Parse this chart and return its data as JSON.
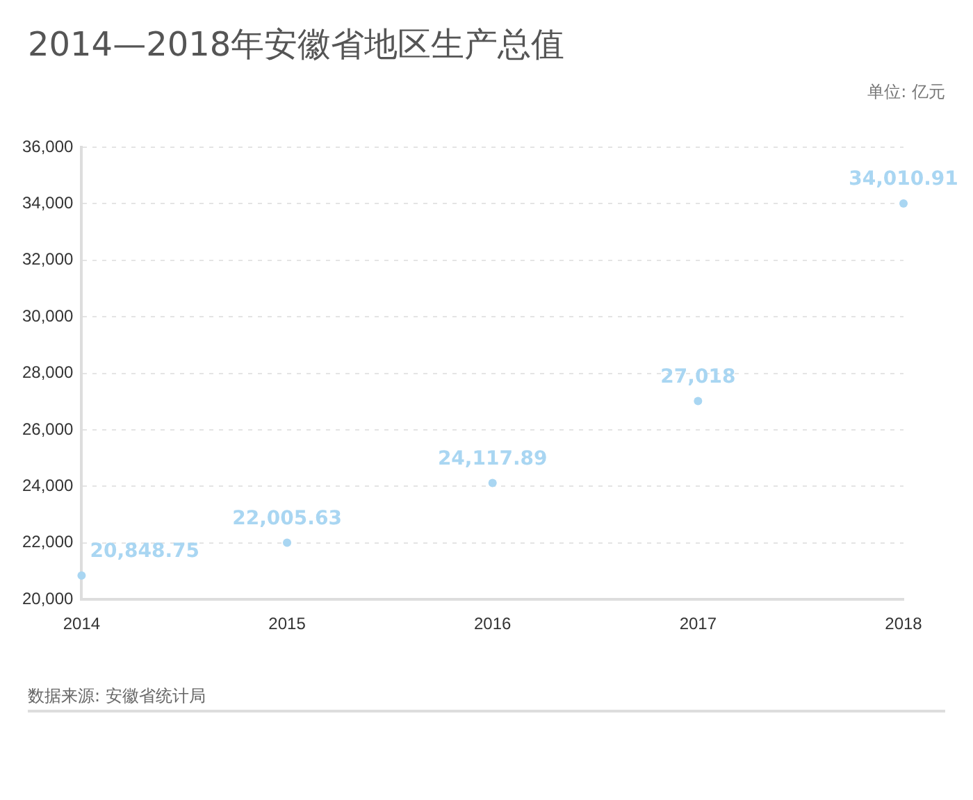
{
  "chart_data": {
    "type": "scatter",
    "title": "2014—2018年安徽省地区生产总值",
    "annotations": [
      "单位: 亿元",
      "数据来源: 安徽省统计局"
    ],
    "categories": [
      "2014",
      "2015",
      "2016",
      "2017",
      "2018"
    ],
    "values": [
      20848.75,
      22005.63,
      24117.89,
      27018,
      34010.91
    ],
    "color": "#a9d6f2",
    "ylim": [
      20000,
      36000
    ],
    "yticks": [
      {
        "value": 20000,
        "label": "20,000"
      },
      {
        "value": 22000,
        "label": "22,000"
      },
      {
        "value": 24000,
        "label": "24,000"
      },
      {
        "value": 26000,
        "label": "26,000"
      },
      {
        "value": 28000,
        "label": "28,000"
      },
      {
        "value": 30000,
        "label": "30,000"
      },
      {
        "value": 32000,
        "label": "32,000"
      },
      {
        "value": 34000,
        "label": "34,000"
      },
      {
        "value": 36000,
        "label": "36,000"
      }
    ],
    "value_labels": [
      "20,848.75",
      "22,005.63",
      "24,117.89",
      "27,018",
      "34,010.91"
    ],
    "grid": "y",
    "marker": "circle"
  }
}
